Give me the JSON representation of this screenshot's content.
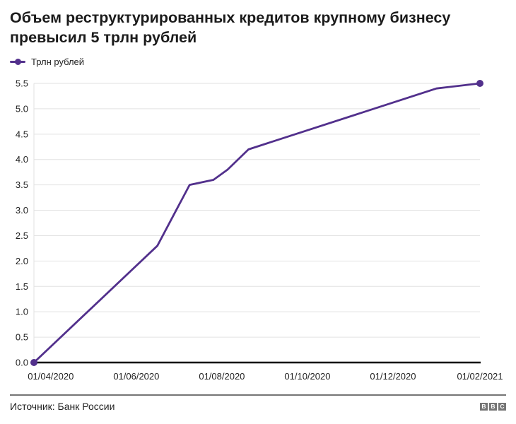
{
  "header": {
    "title": "Объем реструктурированных кредитов крупному бизнесу превысил 5 трлн рублей"
  },
  "legend": {
    "label": "Трлн рублей"
  },
  "chart_data": {
    "type": "line",
    "title": "Объем реструктурированных кредитов крупному бизнесу превысил 5 трлн рублей",
    "xlabel": "",
    "ylabel": "Трлн рублей",
    "x_domain": [
      "20/03/2020",
      "01/02/2021"
    ],
    "ylim": [
      0,
      5.5
    ],
    "grid": "horizontal",
    "legend_position": "top-left",
    "marker_points": "endpoints",
    "x_ticks": [
      "01/04/2020",
      "01/06/2020",
      "01/08/2020",
      "01/10/2020",
      "01/12/2020",
      "01/02/2021"
    ],
    "y_ticks": [
      0.0,
      0.5,
      1.0,
      1.5,
      2.0,
      2.5,
      3.0,
      3.5,
      4.0,
      4.5,
      5.0,
      5.5
    ],
    "series": [
      {
        "name": "Трлн рублей",
        "color": "#52308c",
        "points": [
          {
            "date": "20/03/2020",
            "value": 0.0
          },
          {
            "date": "16/06/2020",
            "value": 2.3
          },
          {
            "date": "09/07/2020",
            "value": 3.5
          },
          {
            "date": "26/07/2020",
            "value": 3.6
          },
          {
            "date": "05/08/2020",
            "value": 3.8
          },
          {
            "date": "20/08/2020",
            "value": 4.2
          },
          {
            "date": "01/01/2021",
            "value": 5.4
          },
          {
            "date": "01/02/2021",
            "value": 5.5
          }
        ]
      }
    ],
    "colors": {
      "line": "#52308c",
      "grid": "#e2e2e2",
      "axis_line": "#000000",
      "tick_label": "#1f1f1f"
    }
  },
  "footer": {
    "source": "Источник: Банк России",
    "logo_letters": [
      "B",
      "B",
      "C"
    ]
  }
}
